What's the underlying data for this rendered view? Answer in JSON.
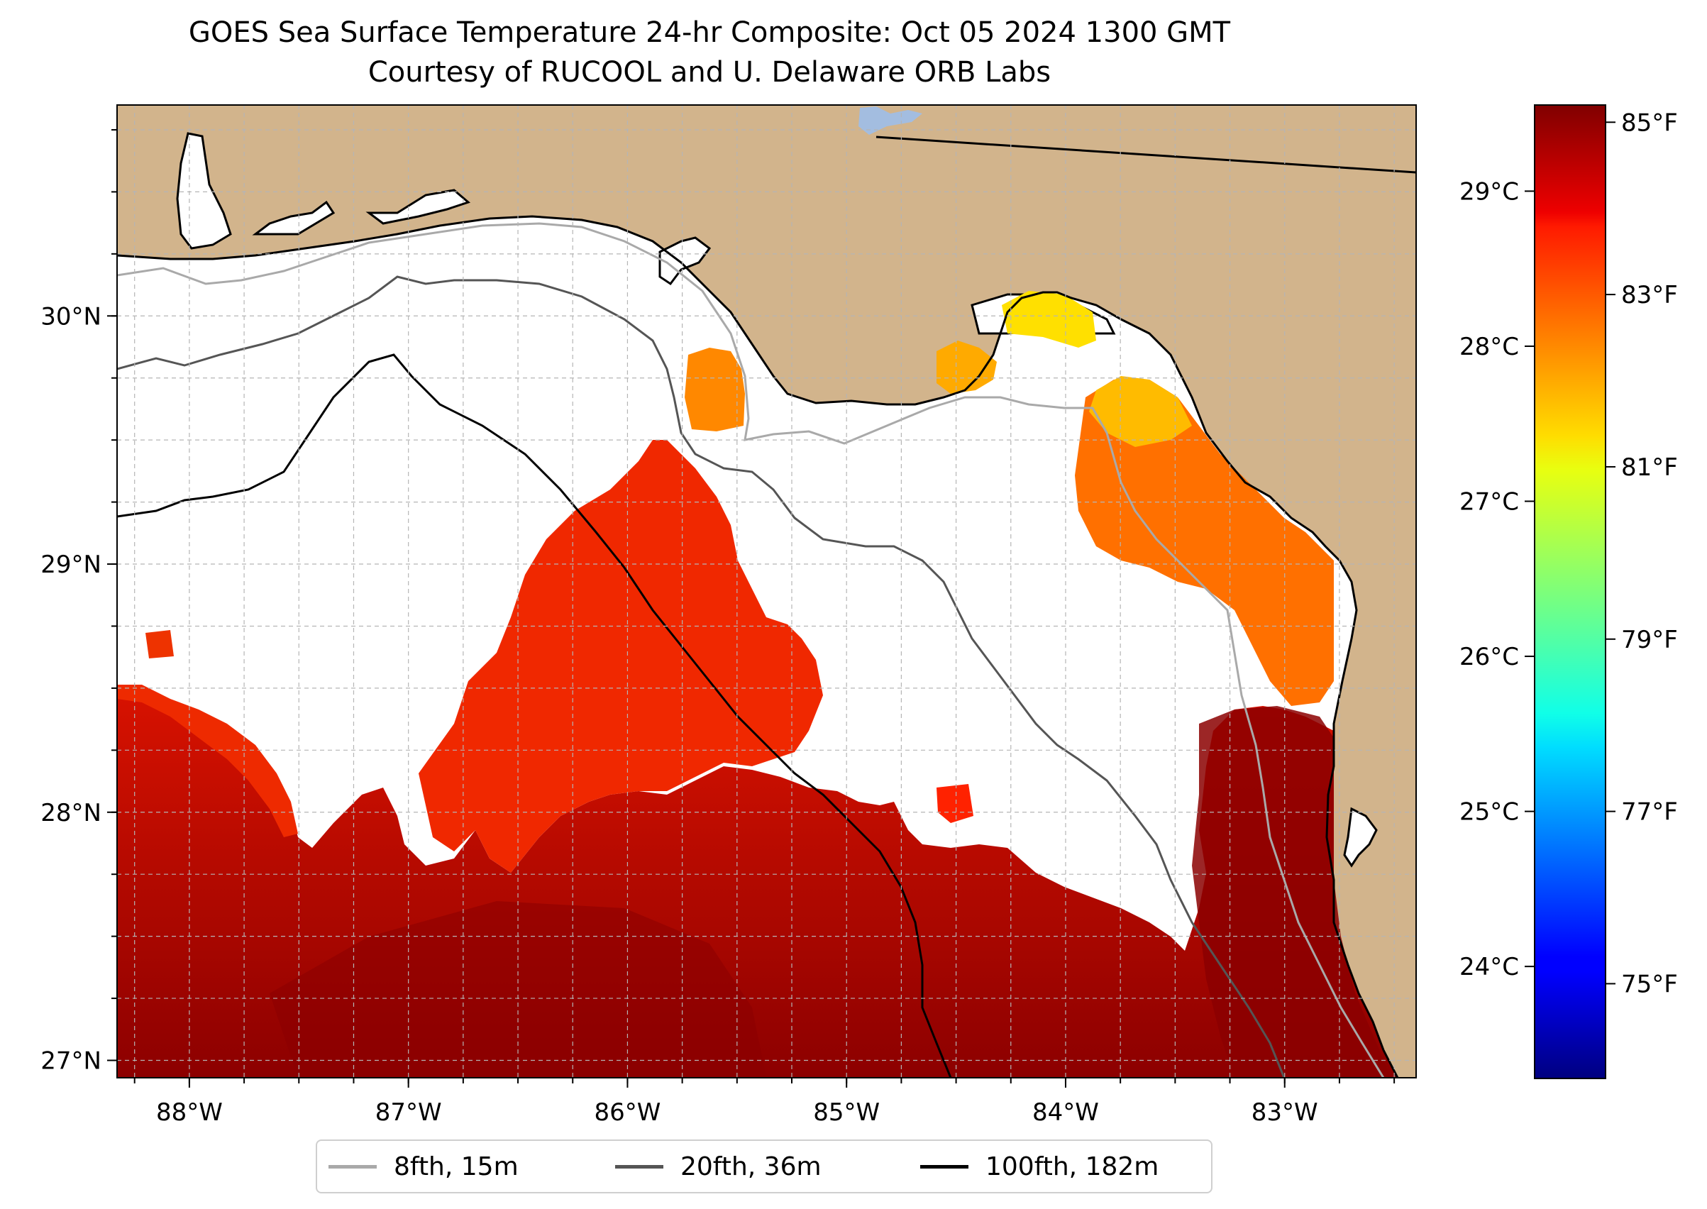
{
  "title": "GOES Sea Surface Temperature 24-hr Composite: Oct 05 2024 1300 GMT",
  "subtitle": "Courtesy of RUCOOL and U. Delaware ORB Labs",
  "map": {
    "lon_range": [
      -88.33,
      -82.4
    ],
    "lat_range": [
      26.93,
      30.85
    ],
    "gridlines": true,
    "colors": {
      "land": "#d2b48c",
      "no_data": "#ffffff",
      "gridline": "#b0b0b0",
      "lake": "#a3bde0"
    },
    "lon_ticks": [
      {
        "value": -88,
        "label": "88°W"
      },
      {
        "value": -87,
        "label": "87°W"
      },
      {
        "value": -86,
        "label": "86°W"
      },
      {
        "value": -85,
        "label": "85°W"
      },
      {
        "value": -84,
        "label": "84°W"
      },
      {
        "value": -83,
        "label": "83°W"
      }
    ],
    "lat_ticks": [
      {
        "value": 27,
        "label": "27°N"
      },
      {
        "value": 28,
        "label": "28°N"
      },
      {
        "value": 29,
        "label": "29°N"
      },
      {
        "value": 30,
        "label": "30°N"
      }
    ]
  },
  "colorbar": {
    "colormap": "jet",
    "range_f": [
      73.9,
      85.2
    ],
    "celsius_ticks": [
      {
        "value": 24,
        "label": "24°C"
      },
      {
        "value": 25,
        "label": "25°C"
      },
      {
        "value": 26,
        "label": "26°C"
      },
      {
        "value": 27,
        "label": "27°C"
      },
      {
        "value": 28,
        "label": "28°C"
      },
      {
        "value": 29,
        "label": "29°C"
      }
    ],
    "fahrenheit_ticks": [
      {
        "value": 75,
        "label": "75°F"
      },
      {
        "value": 77,
        "label": "77°F"
      },
      {
        "value": 79,
        "label": "79°F"
      },
      {
        "value": 81,
        "label": "81°F"
      },
      {
        "value": 83,
        "label": "83°F"
      },
      {
        "value": 85,
        "label": "85°F"
      }
    ]
  },
  "legend": {
    "location": "below map",
    "items": [
      {
        "label": "8fth, 15m",
        "color": "#a9a9a9"
      },
      {
        "label": "20fth, 36m",
        "color": "#555555"
      },
      {
        "label": "100fth, 182m",
        "color": "#000000"
      }
    ]
  }
}
